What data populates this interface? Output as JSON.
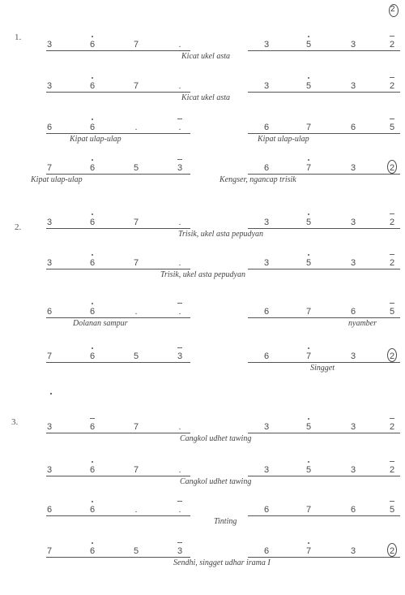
{
  "top_gong": "2",
  "sections": [
    {
      "num": "1.",
      "rows": [
        {
          "notes": [
            {
              "d": "3",
              "m": ""
            },
            {
              "d": "6",
              "m": "dot"
            },
            {
              "d": "7",
              "m": ""
            },
            {
              "d": ".",
              "m": ""
            },
            {
              "d": "3",
              "m": ""
            },
            {
              "d": "5",
              "m": "dot"
            },
            {
              "d": "3",
              "m": ""
            },
            {
              "d": "2",
              "m": "bar"
            }
          ],
          "labels": [
            "Kicat ukel asta"
          ]
        },
        {
          "notes": [
            {
              "d": "3",
              "m": ""
            },
            {
              "d": "6",
              "m": "dot"
            },
            {
              "d": "7",
              "m": ""
            },
            {
              "d": ".",
              "m": ""
            },
            {
              "d": "3",
              "m": ""
            },
            {
              "d": "5",
              "m": "dot"
            },
            {
              "d": "3",
              "m": ""
            },
            {
              "d": "2",
              "m": "bar"
            }
          ],
          "labels": [
            "Kicat ukel asta"
          ]
        },
        {
          "notes": [
            {
              "d": "6",
              "m": ""
            },
            {
              "d": "6",
              "m": "dot"
            },
            {
              "d": ".",
              "m": ""
            },
            {
              "d": ".",
              "m": "bar"
            },
            {
              "d": "6",
              "m": ""
            },
            {
              "d": "7",
              "m": ""
            },
            {
              "d": "6",
              "m": ""
            },
            {
              "d": "5",
              "m": "bar"
            }
          ],
          "labels": [
            "Kipat ulap-ulap",
            "Kipat ulap-ulap"
          ]
        },
        {
          "notes": [
            {
              "d": "7",
              "m": ""
            },
            {
              "d": "6",
              "m": "dot"
            },
            {
              "d": "5",
              "m": ""
            },
            {
              "d": "3",
              "m": "bar"
            },
            {
              "d": "6",
              "m": ""
            },
            {
              "d": "7",
              "m": "dot"
            },
            {
              "d": "3",
              "m": ""
            },
            {
              "d": "2",
              "m": "gong"
            }
          ],
          "labels": [
            "Kipat ulap-ulap",
            "Kengser, ngancap trisik"
          ]
        }
      ]
    },
    {
      "num": "2.",
      "rows": [
        {
          "notes": [
            {
              "d": "3",
              "m": ""
            },
            {
              "d": "6",
              "m": "dot"
            },
            {
              "d": "7",
              "m": ""
            },
            {
              "d": ".",
              "m": ""
            },
            {
              "d": "3",
              "m": ""
            },
            {
              "d": "5",
              "m": "dot"
            },
            {
              "d": "3",
              "m": ""
            },
            {
              "d": "2",
              "m": "bar"
            }
          ],
          "labels": [
            "Trisik, ukel asta pepudyan"
          ]
        },
        {
          "notes": [
            {
              "d": "3",
              "m": ""
            },
            {
              "d": "6",
              "m": "dot"
            },
            {
              "d": "7",
              "m": ""
            },
            {
              "d": ".",
              "m": ""
            },
            {
              "d": "3",
              "m": ""
            },
            {
              "d": "5",
              "m": "dot"
            },
            {
              "d": "3",
              "m": ""
            },
            {
              "d": "2",
              "m": "bar"
            }
          ],
          "labels": [
            "Trisik, ukel asta pepudyan"
          ]
        },
        {
          "notes": [
            {
              "d": "6",
              "m": ""
            },
            {
              "d": "6",
              "m": "dot"
            },
            {
              "d": ".",
              "m": ""
            },
            {
              "d": ".",
              "m": "bar"
            },
            {
              "d": "6",
              "m": ""
            },
            {
              "d": "7",
              "m": ""
            },
            {
              "d": "6",
              "m": ""
            },
            {
              "d": "5",
              "m": "bar"
            }
          ],
          "labels": [
            "Dolanan sampur",
            "nyamber"
          ]
        },
        {
          "notes": [
            {
              "d": "7",
              "m": ""
            },
            {
              "d": "6",
              "m": "dot"
            },
            {
              "d": "5",
              "m": ""
            },
            {
              "d": "3",
              "m": "bar"
            },
            {
              "d": "6",
              "m": ""
            },
            {
              "d": "7",
              "m": "dot"
            },
            {
              "d": "3",
              "m": ""
            },
            {
              "d": "2",
              "m": "gong"
            }
          ],
          "labels": [
            "Singget"
          ]
        }
      ]
    },
    {
      "num": "3.",
      "rows": [
        {
          "notes": [
            {
              "d": "3",
              "m": ""
            },
            {
              "d": "6",
              "m": "bar"
            },
            {
              "d": "7",
              "m": ""
            },
            {
              "d": ".",
              "m": ""
            },
            {
              "d": "3",
              "m": ""
            },
            {
              "d": "5",
              "m": "dot"
            },
            {
              "d": "3",
              "m": ""
            },
            {
              "d": "2",
              "m": "bar"
            }
          ],
          "labels": [
            "Cangkol udhet tawing"
          ]
        },
        {
          "notes": [
            {
              "d": "3",
              "m": ""
            },
            {
              "d": "6",
              "m": "dot"
            },
            {
              "d": "7",
              "m": ""
            },
            {
              "d": ".",
              "m": ""
            },
            {
              "d": "3",
              "m": ""
            },
            {
              "d": "5",
              "m": "dot"
            },
            {
              "d": "3",
              "m": ""
            },
            {
              "d": "2",
              "m": "bar"
            }
          ],
          "labels": [
            "Cangkol udhet tawing"
          ]
        },
        {
          "notes": [
            {
              "d": "6",
              "m": ""
            },
            {
              "d": "6",
              "m": "dot"
            },
            {
              "d": ".",
              "m": ""
            },
            {
              "d": ".",
              "m": "bar"
            },
            {
              "d": "6",
              "m": ""
            },
            {
              "d": "7",
              "m": ""
            },
            {
              "d": "6",
              "m": ""
            },
            {
              "d": "5",
              "m": "bar"
            }
          ],
          "labels": [
            "Tinting"
          ]
        },
        {
          "notes": [
            {
              "d": "7",
              "m": ""
            },
            {
              "d": "6",
              "m": "dot"
            },
            {
              "d": "5",
              "m": ""
            },
            {
              "d": "3",
              "m": "bar"
            },
            {
              "d": "6",
              "m": ""
            },
            {
              "d": "7",
              "m": "dot"
            },
            {
              "d": "3",
              "m": ""
            },
            {
              "d": "2",
              "m": "gong"
            }
          ],
          "labels": [
            "Sendhi, singget udhar irama I"
          ]
        }
      ]
    }
  ]
}
